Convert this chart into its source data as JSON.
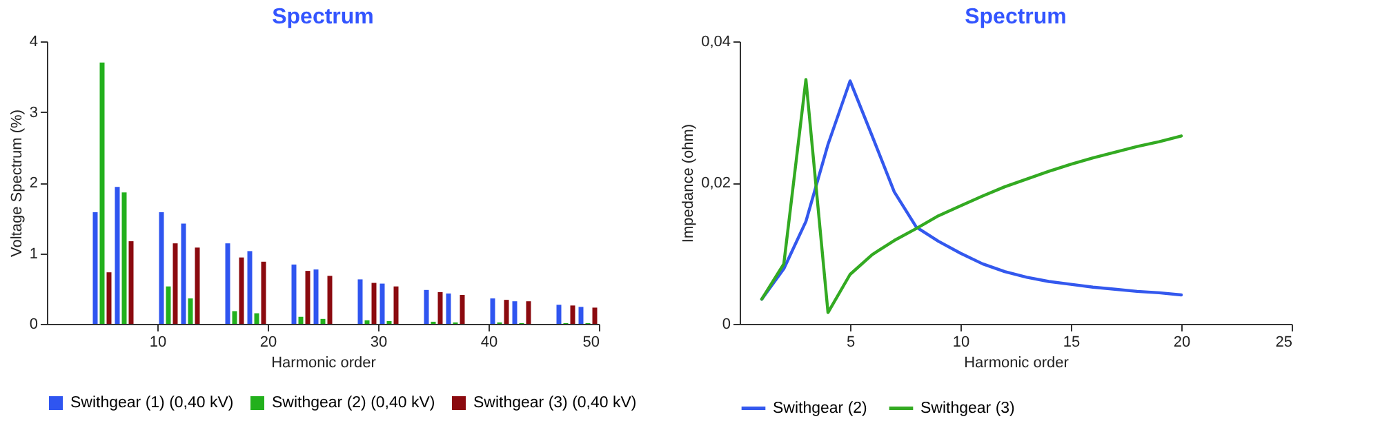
{
  "chart_data": [
    {
      "type": "bar",
      "title": "Spectrum",
      "xlabel": "Harmonic order",
      "ylabel": "Voltage Spectrum (%)",
      "x": [
        5,
        7,
        11,
        13,
        17,
        19,
        23,
        25,
        29,
        31,
        35,
        37,
        41,
        43,
        47,
        49
      ],
      "series": [
        {
          "name": "Swithgear (1) (0,40 kV)",
          "color": "#2f55f0",
          "values": [
            1.58,
            1.94,
            1.58,
            1.42,
            1.14,
            1.03,
            0.84,
            0.77,
            0.63,
            0.57,
            0.48,
            0.43,
            0.36,
            0.32,
            0.27,
            0.24
          ]
        },
        {
          "name": "Swithgear (2) (0,40 kV)",
          "color": "#22b01c",
          "values": [
            3.7,
            1.86,
            0.53,
            0.36,
            0.18,
            0.15,
            0.1,
            0.07,
            0.05,
            0.04,
            0.03,
            0.02,
            0.02,
            0.01,
            0.01,
            0.01
          ]
        },
        {
          "name": "Swithgear (3) (0,40 kV)",
          "color": "#8b0a0f",
          "values": [
            0.73,
            1.17,
            1.14,
            1.08,
            0.94,
            0.88,
            0.75,
            0.68,
            0.58,
            0.53,
            0.45,
            0.41,
            0.34,
            0.32,
            0.26,
            0.23
          ]
        }
      ],
      "xlim": [
        0,
        50
      ],
      "xticks": [
        10,
        20,
        30,
        40,
        50
      ],
      "ylim": [
        0,
        4
      ],
      "yticks": [
        0,
        1,
        2,
        3,
        4
      ],
      "grid": false,
      "legend": "bottom"
    },
    {
      "type": "line",
      "title": "Spectrum",
      "xlabel": "Harmonic order",
      "ylabel": "Impedance (ohm)",
      "x": [
        1,
        2,
        3,
        4,
        5,
        6,
        7,
        8,
        9,
        10,
        11,
        12,
        13,
        14,
        15,
        16,
        17,
        18,
        19,
        20
      ],
      "series": [
        {
          "name": "Swithgear (2)",
          "color": "#3358ee",
          "values": [
            0.0035,
            0.0078,
            0.0145,
            0.0254,
            0.0344,
            0.0266,
            0.0187,
            0.0137,
            0.0117,
            0.01,
            0.0085,
            0.0074,
            0.0066,
            0.006,
            0.0056,
            0.0052,
            0.0049,
            0.0046,
            0.0044,
            0.0041
          ]
        },
        {
          "name": "Swithgear (3)",
          "color": "#33aa22",
          "values": [
            0.0035,
            0.0085,
            0.0346,
            0.0016,
            0.007,
            0.0098,
            0.0118,
            0.0135,
            0.0153,
            0.0167,
            0.0181,
            0.0194,
            0.0205,
            0.0216,
            0.0226,
            0.0235,
            0.0243,
            0.0251,
            0.0258,
            0.0266
          ]
        }
      ],
      "xlim": [
        0,
        25
      ],
      "xticks": [
        5,
        10,
        15,
        20,
        25
      ],
      "ylim": [
        0,
        0.04
      ],
      "yticks": [
        {
          "value": 0,
          "label": "0"
        },
        {
          "value": 0.02,
          "label": "0,02"
        },
        {
          "value": 0.04,
          "label": "0,04"
        }
      ],
      "grid": false,
      "legend": "bottom",
      "line_style": "solid"
    }
  ]
}
